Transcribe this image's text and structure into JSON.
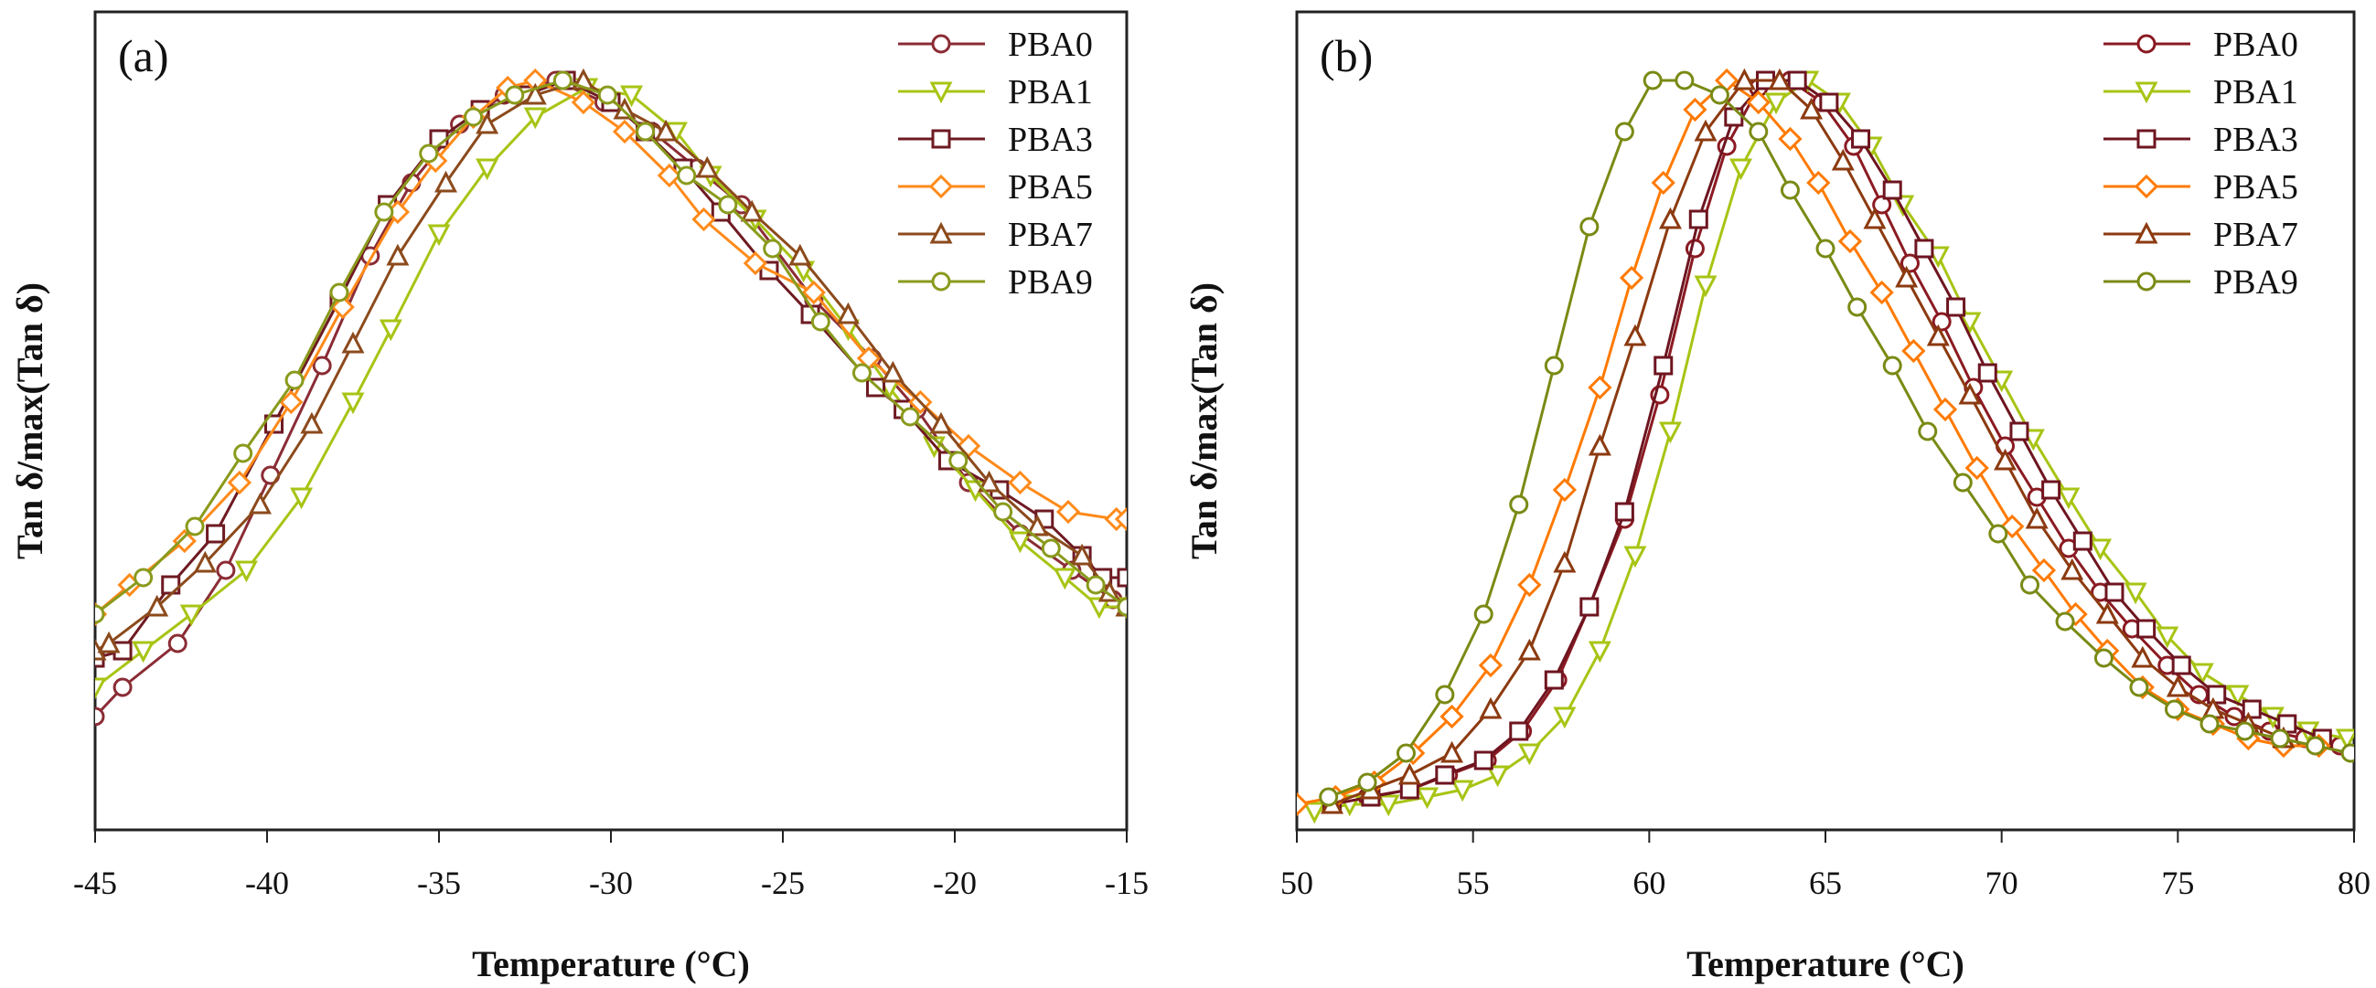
{
  "chart_data": [
    {
      "type": "line",
      "panel_label": "(a)",
      "title": "",
      "xlabel": "Temperature (°C)",
      "ylabel": "Tan δ/max(Tan δ)",
      "xlim": [
        -45,
        -15
      ],
      "ylim": [
        0,
        1.0
      ],
      "xticks": [
        "-45",
        "-40",
        "-35",
        "-30",
        "-25",
        "-20",
        "-15"
      ],
      "xtick_values": [
        -45,
        -40,
        -35,
        -30,
        -25,
        -20,
        -15
      ],
      "yticks": [],
      "grid": false,
      "legend": "top-right",
      "series": [
        {
          "name": "PBA0",
          "marker": "circle",
          "color": "#8b2c35",
          "x": [
            -45,
            -44.2,
            -42.6,
            -41.2,
            -39.9,
            -38.4,
            -37.0,
            -35.8,
            -34.4,
            -33.1,
            -31.6,
            -30.2,
            -28.8,
            -27.5,
            -26.2,
            -24.1,
            -22.4,
            -21.1,
            -19.6,
            -18.1,
            -16.6,
            -15.4,
            -15
          ],
          "y": [
            0.13,
            0.17,
            0.23,
            0.33,
            0.46,
            0.61,
            0.76,
            0.86,
            0.94,
            0.98,
            1.0,
            0.97,
            0.93,
            0.88,
            0.83,
            0.7,
            0.62,
            0.55,
            0.45,
            0.38,
            0.33,
            0.29,
            0.28
          ]
        },
        {
          "name": "PBA1",
          "marker": "triangle-down",
          "color": "#a8c414",
          "x": [
            -45,
            -43.6,
            -42.2,
            -40.6,
            -39.0,
            -37.5,
            -36.4,
            -35.0,
            -33.6,
            -32.2,
            -30.7,
            -29.4,
            -28.1,
            -27.1,
            -25.8,
            -24.4,
            -23.1,
            -21.9,
            -20.6,
            -19.4,
            -18.1,
            -16.8,
            -15.8,
            -15
          ],
          "y": [
            0.17,
            0.22,
            0.27,
            0.33,
            0.43,
            0.56,
            0.66,
            0.79,
            0.88,
            0.95,
            0.99,
            0.98,
            0.93,
            0.87,
            0.81,
            0.74,
            0.66,
            0.58,
            0.5,
            0.44,
            0.37,
            0.32,
            0.28,
            0.28
          ]
        },
        {
          "name": "PBA3",
          "marker": "square",
          "color": "#6e1a22",
          "x": [
            -45,
            -44.2,
            -42.8,
            -41.5,
            -39.8,
            -37.9,
            -36.5,
            -35.0,
            -33.8,
            -32.5,
            -31.3,
            -30.0,
            -29.0,
            -27.9,
            -26.8,
            -25.4,
            -24.2,
            -22.3,
            -21.5,
            -20.2,
            -18.7,
            -17.4,
            -16.3,
            -15.7,
            -15
          ],
          "y": [
            0.21,
            0.22,
            0.31,
            0.38,
            0.53,
            0.7,
            0.83,
            0.92,
            0.96,
            0.98,
            1.0,
            0.97,
            0.93,
            0.88,
            0.82,
            0.74,
            0.68,
            0.58,
            0.55,
            0.48,
            0.44,
            0.4,
            0.35,
            0.32,
            0.32
          ]
        },
        {
          "name": "PBA5",
          "marker": "diamond",
          "color": "#ff8a1a",
          "x": [
            -45,
            -44.0,
            -42.4,
            -40.8,
            -39.3,
            -37.8,
            -36.2,
            -35.1,
            -34.0,
            -33.0,
            -32.2,
            -30.8,
            -29.6,
            -28.3,
            -27.3,
            -25.8,
            -24.1,
            -22.5,
            -21.0,
            -19.6,
            -18.1,
            -16.7,
            -15.3,
            -15
          ],
          "y": [
            0.27,
            0.31,
            0.37,
            0.45,
            0.56,
            0.69,
            0.82,
            0.89,
            0.95,
            0.99,
            1.0,
            0.97,
            0.93,
            0.87,
            0.81,
            0.75,
            0.71,
            0.62,
            0.56,
            0.5,
            0.45,
            0.41,
            0.4,
            0.4
          ]
        },
        {
          "name": "PBA7",
          "marker": "triangle-up",
          "color": "#8c4a1c",
          "x": [
            -45,
            -44.6,
            -43.2,
            -41.8,
            -40.2,
            -38.7,
            -37.5,
            -36.2,
            -34.8,
            -33.6,
            -32.2,
            -30.8,
            -29.6,
            -28.4,
            -27.2,
            -25.9,
            -24.5,
            -23.1,
            -21.8,
            -20.4,
            -19.0,
            -17.6,
            -16.3,
            -15.5,
            -15
          ],
          "y": [
            0.22,
            0.23,
            0.28,
            0.34,
            0.42,
            0.53,
            0.64,
            0.76,
            0.86,
            0.94,
            0.98,
            1.0,
            0.96,
            0.93,
            0.88,
            0.82,
            0.76,
            0.68,
            0.6,
            0.53,
            0.45,
            0.39,
            0.35,
            0.3,
            0.28
          ]
        },
        {
          "name": "PBA9",
          "marker": "circle",
          "color": "#8a9a1c",
          "x": [
            -45,
            -43.6,
            -42.1,
            -40.7,
            -39.2,
            -37.9,
            -36.6,
            -35.3,
            -34.0,
            -32.8,
            -31.4,
            -30.1,
            -29.0,
            -27.8,
            -26.6,
            -25.3,
            -23.9,
            -22.7,
            -21.3,
            -19.9,
            -18.6,
            -17.2,
            -15.9,
            -15
          ],
          "y": [
            0.27,
            0.32,
            0.39,
            0.49,
            0.59,
            0.71,
            0.82,
            0.9,
            0.95,
            0.98,
            1.0,
            0.98,
            0.93,
            0.87,
            0.83,
            0.77,
            0.67,
            0.6,
            0.54,
            0.48,
            0.41,
            0.36,
            0.31,
            0.28
          ]
        }
      ]
    },
    {
      "type": "line",
      "panel_label": "(b)",
      "title": "",
      "xlabel": "Temperature (°C)",
      "ylabel": "Tan δ/max(Tan δ)",
      "xlim": [
        50,
        80
      ],
      "ylim": [
        0,
        1.0
      ],
      "xticks": [
        "50",
        "55",
        "60",
        "65",
        "70",
        "75",
        "80"
      ],
      "xtick_values": [
        50,
        55,
        60,
        65,
        70,
        75,
        80
      ],
      "yticks": [],
      "grid": false,
      "legend": "top-right",
      "series": [
        {
          "name": "PBA0",
          "marker": "circle",
          "color": "#8b1a22",
          "x": [
            51.0,
            52.0,
            53.2,
            54.3,
            55.4,
            56.4,
            57.4,
            58.3,
            59.3,
            60.3,
            61.3,
            62.2,
            63.1,
            64.0,
            64.9,
            65.8,
            66.6,
            67.4,
            68.3,
            69.2,
            70.1,
            71.0,
            71.9,
            72.8,
            73.7,
            74.7,
            75.6,
            76.6,
            77.6,
            78.6,
            79.6
          ],
          "y": [
            0.01,
            0.02,
            0.03,
            0.05,
            0.07,
            0.11,
            0.18,
            0.28,
            0.4,
            0.57,
            0.77,
            0.91,
            0.99,
            1.0,
            0.97,
            0.91,
            0.83,
            0.75,
            0.67,
            0.58,
            0.5,
            0.43,
            0.36,
            0.3,
            0.25,
            0.2,
            0.16,
            0.13,
            0.11,
            0.1,
            0.09
          ]
        },
        {
          "name": "PBA1",
          "marker": "triangle-down",
          "color": "#a8c414",
          "x": [
            50.5,
            51.5,
            52.6,
            53.7,
            54.7,
            55.7,
            56.6,
            57.6,
            58.6,
            59.6,
            60.6,
            61.6,
            62.6,
            63.6,
            64.5,
            65.4,
            66.3,
            67.2,
            68.2,
            69.1,
            70.0,
            70.9,
            71.9,
            72.8,
            73.8,
            74.7,
            75.7,
            76.7,
            77.7,
            78.7,
            79.8
          ],
          "y": [
            0.0,
            0.01,
            0.01,
            0.02,
            0.03,
            0.05,
            0.08,
            0.13,
            0.22,
            0.35,
            0.52,
            0.72,
            0.88,
            0.97,
            1.0,
            0.97,
            0.91,
            0.83,
            0.76,
            0.67,
            0.59,
            0.51,
            0.43,
            0.36,
            0.3,
            0.24,
            0.19,
            0.16,
            0.13,
            0.11,
            0.1
          ]
        },
        {
          "name": "PBA3",
          "marker": "square",
          "color": "#6e1520",
          "x": [
            51.0,
            52.1,
            53.2,
            54.2,
            55.3,
            56.3,
            57.3,
            58.3,
            59.3,
            60.4,
            61.4,
            62.4,
            63.3,
            64.2,
            65.1,
            66.0,
            66.9,
            67.8,
            68.7,
            69.6,
            70.5,
            71.4,
            72.3,
            73.2,
            74.1,
            75.1,
            76.1,
            77.1,
            78.1,
            79.1
          ],
          "y": [
            0.01,
            0.02,
            0.03,
            0.05,
            0.07,
            0.11,
            0.18,
            0.28,
            0.41,
            0.61,
            0.81,
            0.95,
            1.0,
            1.0,
            0.97,
            0.92,
            0.85,
            0.77,
            0.69,
            0.6,
            0.52,
            0.44,
            0.37,
            0.3,
            0.25,
            0.2,
            0.16,
            0.14,
            0.12,
            0.1
          ]
        },
        {
          "name": "PBA5",
          "marker": "diamond",
          "color": "#ff7a00",
          "x": [
            50.0,
            51.1,
            52.2,
            53.3,
            54.4,
            55.5,
            56.6,
            57.6,
            58.6,
            59.5,
            60.4,
            61.3,
            62.2,
            63.1,
            64.0,
            64.8,
            65.7,
            66.6,
            67.5,
            68.4,
            69.3,
            70.3,
            71.2,
            72.1,
            73.0,
            74.0,
            75.0,
            76.0,
            77.0,
            78.0,
            79.0
          ],
          "y": [
            0.01,
            0.02,
            0.04,
            0.08,
            0.13,
            0.2,
            0.31,
            0.44,
            0.58,
            0.73,
            0.86,
            0.96,
            1.0,
            0.97,
            0.92,
            0.86,
            0.78,
            0.71,
            0.63,
            0.55,
            0.47,
            0.39,
            0.33,
            0.27,
            0.22,
            0.17,
            0.14,
            0.12,
            0.1,
            0.09,
            0.09
          ]
        },
        {
          "name": "PBA7",
          "marker": "triangle-up",
          "color": "#8c3a10",
          "x": [
            51.0,
            52.1,
            53.2,
            54.4,
            55.5,
            56.6,
            57.6,
            58.6,
            59.6,
            60.6,
            61.6,
            62.7,
            63.7,
            64.6,
            65.5,
            66.4,
            67.3,
            68.2,
            69.1,
            70.1,
            71.0,
            72.0,
            73.0,
            74.0,
            75.0,
            76.0,
            77.0,
            78.0
          ],
          "y": [
            0.01,
            0.03,
            0.05,
            0.08,
            0.14,
            0.22,
            0.34,
            0.5,
            0.65,
            0.81,
            0.93,
            1.0,
            1.0,
            0.96,
            0.89,
            0.81,
            0.73,
            0.65,
            0.57,
            0.48,
            0.4,
            0.33,
            0.27,
            0.21,
            0.17,
            0.14,
            0.12,
            0.1
          ]
        },
        {
          "name": "PBA9",
          "marker": "circle",
          "color": "#7a8a14",
          "x": [
            50.9,
            52.0,
            53.1,
            54.2,
            55.3,
            56.3,
            57.3,
            58.3,
            59.3,
            60.1,
            61.0,
            62.0,
            63.1,
            64.0,
            65.0,
            65.9,
            66.9,
            67.9,
            68.9,
            69.9,
            70.8,
            71.8,
            72.9,
            73.9,
            74.9,
            75.9,
            76.9,
            77.9,
            78.9,
            79.9
          ],
          "y": [
            0.02,
            0.04,
            0.08,
            0.16,
            0.27,
            0.42,
            0.61,
            0.8,
            0.93,
            1.0,
            1.0,
            0.98,
            0.93,
            0.85,
            0.77,
            0.69,
            0.61,
            0.52,
            0.45,
            0.38,
            0.31,
            0.26,
            0.21,
            0.17,
            0.14,
            0.12,
            0.11,
            0.1,
            0.09,
            0.08
          ]
        }
      ]
    }
  ]
}
